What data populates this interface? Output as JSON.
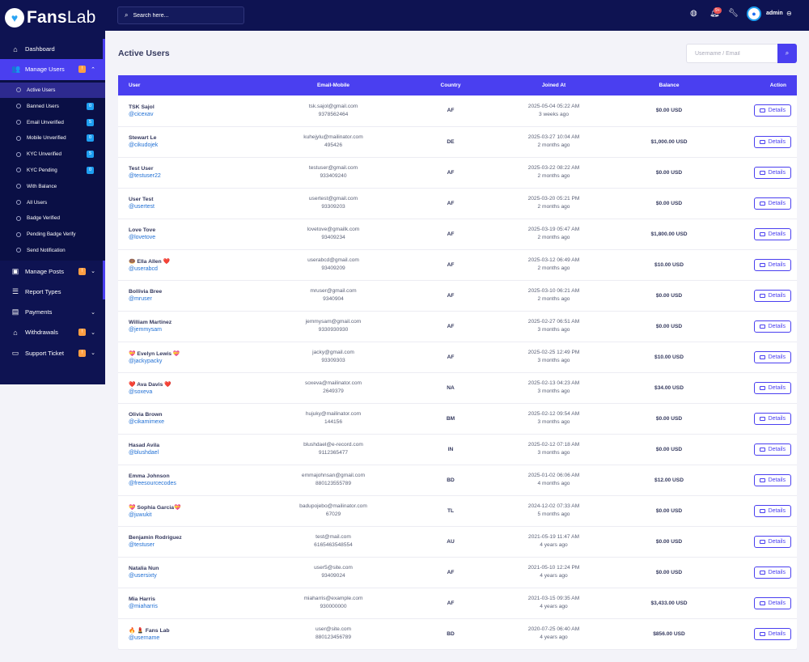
{
  "brand": {
    "name_bold": "Fans",
    "name_light": "Lab"
  },
  "search": {
    "placeholder": "Search here..."
  },
  "topbar": {
    "notification_count": "9+",
    "admin_name": "admin"
  },
  "sidebar": {
    "items": [
      {
        "label": "Dashboard",
        "icon": "home-icon"
      },
      {
        "label": "Manage Users",
        "icon": "users-icon",
        "badge": "!"
      },
      {
        "label": "Manage Posts",
        "icon": "posts-icon",
        "badge": "!"
      },
      {
        "label": "Report Types",
        "icon": "list-icon"
      },
      {
        "label": "Payments",
        "icon": "payments-icon"
      },
      {
        "label": "Withdrawals",
        "icon": "bank-icon",
        "badge": "!"
      },
      {
        "label": "Support Ticket",
        "icon": "ticket-icon",
        "badge": "!"
      }
    ],
    "sub_items": [
      {
        "label": "Active Users"
      },
      {
        "label": "Banned Users",
        "badge": "0"
      },
      {
        "label": "Email Unverified",
        "badge": "5"
      },
      {
        "label": "Mobile Unverified",
        "badge": "0"
      },
      {
        "label": "KYC Unverified",
        "badge": "5"
      },
      {
        "label": "KYC Pending",
        "badge": "0"
      },
      {
        "label": "With Balance"
      },
      {
        "label": "All Users"
      },
      {
        "label": "Badge Verified"
      },
      {
        "label": "Pending Badge Verify"
      },
      {
        "label": "Send Notification"
      }
    ]
  },
  "page": {
    "title": "Active Users",
    "search_placeholder": "Username / Email"
  },
  "table": {
    "headers": {
      "user": "User",
      "email": "Email-Mobile",
      "country": "Country",
      "joined": "Joined At",
      "balance": "Balance",
      "action": "Action"
    },
    "details_label": "Details",
    "rows": [
      {
        "name": "TSK Sajol",
        "handle": "@cicexav",
        "email": "tsk.sajol@gmail.com",
        "mobile": "9378562464",
        "country": "AF",
        "joined": "2025-05-04 05:22 AM",
        "ago": "3 weeks ago",
        "balance": "$0.00 USD"
      },
      {
        "name": "Stewart Le",
        "handle": "@cikudojek",
        "email": "kuhejylu@mailinator.com",
        "mobile": "495426",
        "country": "DE",
        "joined": "2025-03-27 10:04 AM",
        "ago": "2 months ago",
        "balance": "$1,000.00 USD"
      },
      {
        "name": "Test User",
        "handle": "@testuser22",
        "email": "testuser@gmail.com",
        "mobile": "933409240",
        "country": "AF",
        "joined": "2025-03-22 08:22 AM",
        "ago": "2 months ago",
        "balance": "$0.00 USD"
      },
      {
        "name": "User Test",
        "handle": "@usertest",
        "email": "usertest@gmail.com",
        "mobile": "93309203",
        "country": "AF",
        "joined": "2025-03-20 05:21 PM",
        "ago": "2 months ago",
        "balance": "$0.00 USD"
      },
      {
        "name": "Love Tove",
        "handle": "@lovetove",
        "email": "lovetove@gmailk.com",
        "mobile": "93409234",
        "country": "AF",
        "joined": "2025-03-19 05:47 AM",
        "ago": "2 months ago",
        "balance": "$1,800.00 USD"
      },
      {
        "name": "🍩 Ella Allen ❤️",
        "handle": "@userabcd",
        "email": "userabcd@gmail.com",
        "mobile": "93409209",
        "country": "AF",
        "joined": "2025-03-12 06:49 AM",
        "ago": "2 months ago",
        "balance": "$10.00 USD"
      },
      {
        "name": "Bollivia Bree",
        "handle": "@mruser",
        "email": "mruser@gmail.com",
        "mobile": "9340904",
        "country": "AF",
        "joined": "2025-03-10 06:21 AM",
        "ago": "2 months ago",
        "balance": "$0.00 USD"
      },
      {
        "name": "William Martinez",
        "handle": "@jemmysam",
        "email": "jemmysam@gmail.com",
        "mobile": "9330930930",
        "country": "AF",
        "joined": "2025-02-27 06:51 AM",
        "ago": "3 months ago",
        "balance": "$0.00 USD"
      },
      {
        "name": "💝 Evelyn Lewis 💝",
        "handle": "@jackypacky",
        "email": "jacky@gmail.com",
        "mobile": "93309303",
        "country": "AF",
        "joined": "2025-02-25 12:49 PM",
        "ago": "3 months ago",
        "balance": "$10.00 USD"
      },
      {
        "name": "❤️ Ava Davis ❤️",
        "handle": "@soxeva",
        "email": "soxeva@mailinator.com",
        "mobile": "2649379",
        "country": "NA",
        "joined": "2025-02-13 04:23 AM",
        "ago": "3 months ago",
        "balance": "$34.00 USD"
      },
      {
        "name": "Olivia Brown",
        "handle": "@cikamimexe",
        "email": "hujuky@mailinator.com",
        "mobile": "144156",
        "country": "BM",
        "joined": "2025-02-12 09:54 AM",
        "ago": "3 months ago",
        "balance": "$0.00 USD"
      },
      {
        "name": "Hasad Avila",
        "handle": "@blushdael",
        "email": "blushdael@e-record.com",
        "mobile": "9112365477",
        "country": "IN",
        "joined": "2025-02-12 07:18 AM",
        "ago": "3 months ago",
        "balance": "$0.00 USD"
      },
      {
        "name": "Emma Johnson",
        "handle": "@freesourcecodes",
        "email": "emmajohnsan@gmail.com",
        "mobile": "880123555789",
        "country": "BD",
        "joined": "2025-01-02 06:06 AM",
        "ago": "4 months ago",
        "balance": "$12.00 USD"
      },
      {
        "name": "💝 Sophia Garcia💝",
        "handle": "@juwukit",
        "email": "badupojebo@mailinator.com",
        "mobile": "67029",
        "country": "TL",
        "joined": "2024-12-02 07:33 AM",
        "ago": "5 months ago",
        "balance": "$0.00 USD"
      },
      {
        "name": "Benjamin Rodriguez",
        "handle": "@testuser",
        "email": "test@mail.com",
        "mobile": "6165463548554",
        "country": "AU",
        "joined": "2021-05-19 11:47 AM",
        "ago": "4 years ago",
        "balance": "$0.00 USD"
      },
      {
        "name": "Natalia Nun",
        "handle": "@usersixty",
        "email": "user5@site.com",
        "mobile": "93409024",
        "country": "AF",
        "joined": "2021-05-10 12:24 PM",
        "ago": "4 years ago",
        "balance": "$0.00 USD"
      },
      {
        "name": "Mia Harris",
        "handle": "@miaharris",
        "email": "miaharris@example.com",
        "mobile": "930000000",
        "country": "AF",
        "joined": "2021-03-15 09:35 AM",
        "ago": "4 years ago",
        "balance": "$3,433.00 USD"
      },
      {
        "name": "🔥 💄 Fans Lab",
        "handle": "@username",
        "email": "user@site.com",
        "mobile": "880123456789",
        "country": "BD",
        "joined": "2020-07-25 06:40 AM",
        "ago": "4 years ago",
        "balance": "$856.00 USD"
      }
    ]
  }
}
